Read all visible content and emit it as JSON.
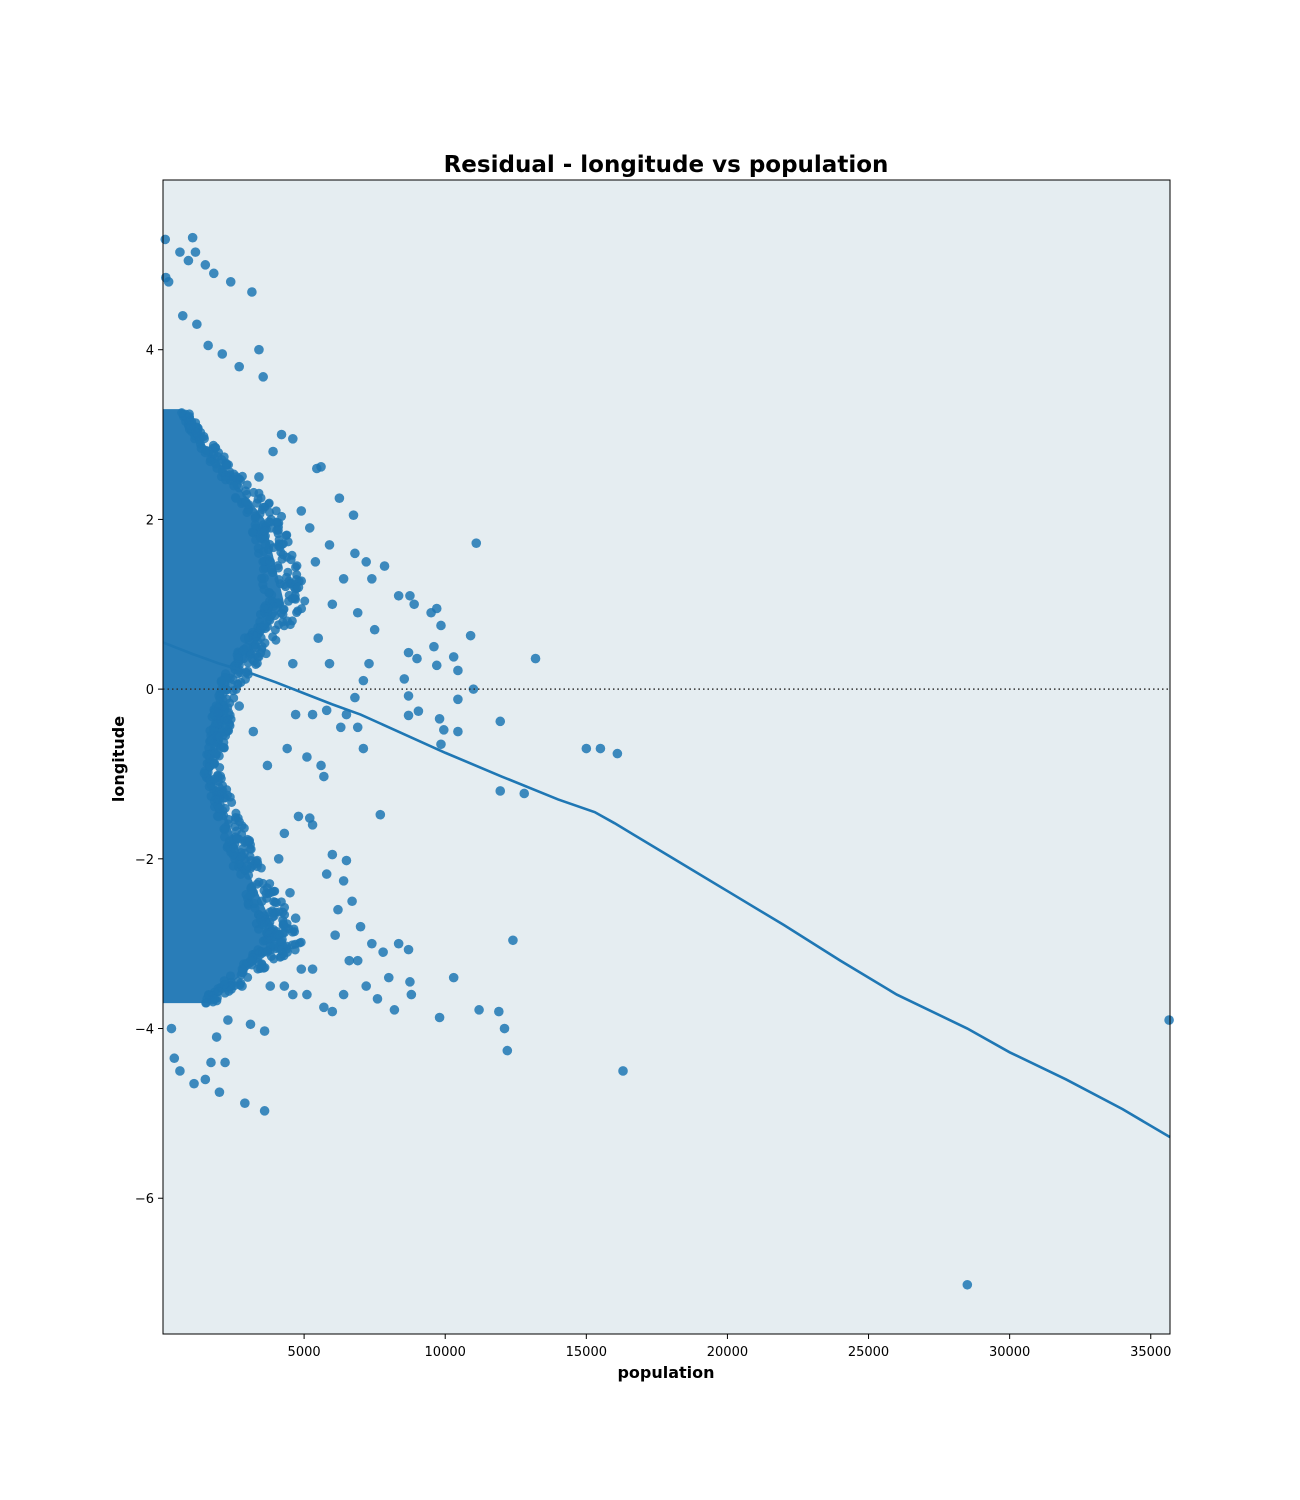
{
  "chart_data": {
    "type": "scatter",
    "title": "Residual - longitude vs population",
    "xlabel": "population",
    "ylabel": "longitude",
    "xlim": [
      0,
      35682
    ],
    "ylim": [
      -7.6,
      6.0
    ],
    "x_ticks": [
      5000,
      10000,
      15000,
      20000,
      25000,
      30000,
      35000
    ],
    "y_ticks": [
      -6,
      -4,
      -2,
      0,
      2,
      4
    ],
    "x_tick_labels": [
      "5000",
      "10000",
      "15000",
      "20000",
      "25000",
      "30000",
      "35000"
    ],
    "y_tick_labels": [
      "−6",
      "−4",
      "−2",
      "0",
      "2",
      "4"
    ],
    "colors": {
      "points": "#1f77b4",
      "fit_line": "#1f77b4",
      "plot_bg": "#e5edf1",
      "zero_line": "#333333"
    },
    "grid": false,
    "reference_line": {
      "y": 0,
      "style": "dotted"
    },
    "series": [
      {
        "kind": "points",
        "points": [
          [
            11100,
            1.72
          ],
          [
            13200,
            0.36
          ],
          [
            10900,
            0.63
          ],
          [
            11000,
            0.0
          ],
          [
            11950,
            -0.38
          ],
          [
            11950,
            -1.2
          ],
          [
            12800,
            -1.23
          ],
          [
            15000,
            -0.7
          ],
          [
            15500,
            -0.7
          ],
          [
            16100,
            -0.76
          ],
          [
            12400,
            -2.96
          ],
          [
            10300,
            -3.4
          ],
          [
            9800,
            -3.87
          ],
          [
            11200,
            -3.78
          ],
          [
            11900,
            -3.8
          ],
          [
            12100,
            -4.0
          ],
          [
            12200,
            -4.26
          ],
          [
            16300,
            -4.5
          ],
          [
            28500,
            -7.02
          ],
          [
            35650,
            -3.9
          ],
          [
            10300,
            0.38
          ],
          [
            10450,
            0.22
          ],
          [
            10450,
            -0.12
          ],
          [
            10450,
            -0.5
          ],
          [
            9800,
            -0.35
          ],
          [
            9850,
            -0.65
          ],
          [
            9950,
            -0.48
          ],
          [
            9500,
            0.9
          ],
          [
            9700,
            0.95
          ],
          [
            9850,
            0.75
          ],
          [
            9600,
            0.5
          ],
          [
            9700,
            0.28
          ],
          [
            9000,
            0.36
          ],
          [
            9050,
            -0.26
          ],
          [
            8700,
            -0.31
          ],
          [
            8700,
            -0.08
          ],
          [
            8550,
            0.12
          ],
          [
            8700,
            0.43
          ],
          [
            8350,
            1.1
          ],
          [
            8750,
            1.1
          ],
          [
            8900,
            1.0
          ],
          [
            7850,
            1.45
          ],
          [
            7700,
            -1.48
          ],
          [
            8350,
            -3.0
          ],
          [
            8700,
            -3.07
          ],
          [
            8750,
            -3.45
          ],
          [
            8800,
            -3.6
          ],
          [
            8200,
            -3.78
          ],
          [
            6750,
            2.05
          ],
          [
            6250,
            2.25
          ],
          [
            5600,
            2.62
          ],
          [
            5450,
            2.6
          ],
          [
            3400,
            4.0
          ],
          [
            3550,
            3.68
          ],
          [
            3150,
            4.68
          ],
          [
            2400,
            4.8
          ],
          [
            1050,
            5.32
          ],
          [
            1150,
            5.15
          ],
          [
            80,
            5.3
          ],
          [
            3600,
            -4.97
          ],
          [
            2900,
            -4.88
          ],
          [
            3600,
            -4.03
          ],
          [
            3100,
            -3.95
          ],
          [
            6800,
            1.6
          ],
          [
            7200,
            1.5
          ],
          [
            7400,
            1.3
          ],
          [
            6900,
            0.9
          ],
          [
            7500,
            0.7
          ],
          [
            7300,
            0.3
          ],
          [
            7100,
            0.1
          ],
          [
            6800,
            -0.1
          ],
          [
            7100,
            -0.7
          ],
          [
            6900,
            -0.45
          ],
          [
            6500,
            -0.3
          ],
          [
            6300,
            -0.45
          ],
          [
            5800,
            -0.25
          ],
          [
            5600,
            -0.9
          ],
          [
            5700,
            -1.03
          ],
          [
            5200,
            -1.52
          ],
          [
            5300,
            -1.6
          ],
          [
            5100,
            -0.8
          ],
          [
            6000,
            -1.95
          ],
          [
            6500,
            -2.02
          ],
          [
            6400,
            -2.26
          ],
          [
            5800,
            -2.18
          ],
          [
            6200,
            -2.6
          ],
          [
            6700,
            -2.5
          ],
          [
            6100,
            -2.9
          ],
          [
            6600,
            -3.2
          ],
          [
            7000,
            -2.8
          ],
          [
            7400,
            -3.0
          ],
          [
            7800,
            -3.1
          ],
          [
            7200,
            -3.5
          ],
          [
            7600,
            -3.65
          ],
          [
            6400,
            -3.6
          ],
          [
            6000,
            -3.8
          ],
          [
            5700,
            -3.75
          ],
          [
            5100,
            -3.6
          ],
          [
            6900,
            -3.2
          ],
          [
            8000,
            -3.4
          ],
          [
            4600,
            0.3
          ],
          [
            4400,
            0.8
          ],
          [
            4800,
            1.2
          ],
          [
            5200,
            1.9
          ],
          [
            4900,
            2.1
          ],
          [
            5400,
            1.5
          ],
          [
            5900,
            1.7
          ],
          [
            6400,
            1.3
          ],
          [
            6000,
            1.0
          ],
          [
            5500,
            0.6
          ],
          [
            5900,
            0.3
          ],
          [
            5300,
            -0.3
          ],
          [
            4700,
            -0.3
          ],
          [
            4400,
            -0.7
          ],
          [
            4800,
            -1.5
          ],
          [
            4300,
            -1.7
          ],
          [
            4100,
            -2.0
          ],
          [
            4500,
            -2.4
          ],
          [
            4700,
            -2.7
          ],
          [
            4400,
            -3.1
          ],
          [
            4900,
            -3.3
          ],
          [
            4300,
            -3.5
          ],
          [
            4600,
            -3.6
          ],
          [
            5300,
            -3.3
          ],
          [
            3500,
            0.5
          ],
          [
            3800,
            1.5
          ],
          [
            3400,
            2.5
          ],
          [
            3900,
            2.8
          ],
          [
            4200,
            3.0
          ],
          [
            4600,
            2.95
          ],
          [
            2700,
            3.8
          ],
          [
            2100,
            3.95
          ],
          [
            1600,
            4.05
          ],
          [
            1200,
            4.3
          ],
          [
            700,
            4.4
          ],
          [
            2600,
            2.5
          ],
          [
            3200,
            -0.5
          ],
          [
            3700,
            -0.9
          ],
          [
            3000,
            -1.8
          ],
          [
            3500,
            -2.5
          ],
          [
            3800,
            -3.5
          ],
          [
            2800,
            -3.5
          ],
          [
            2300,
            -3.9
          ],
          [
            1900,
            -4.1
          ],
          [
            1700,
            -4.4
          ],
          [
            2200,
            -4.4
          ],
          [
            2000,
            -4.75
          ],
          [
            1500,
            -4.6
          ],
          [
            1100,
            -4.65
          ],
          [
            600,
            -4.5
          ],
          [
            400,
            -4.35
          ],
          [
            300,
            -4.0
          ],
          [
            600,
            5.15
          ],
          [
            900,
            5.05
          ],
          [
            1500,
            5.0
          ],
          [
            1800,
            4.9
          ],
          [
            200,
            4.8
          ],
          [
            100,
            4.85
          ],
          [
            2700,
            -0.2
          ],
          [
            2900,
            0.6
          ]
        ]
      },
      {
        "kind": "dense_band",
        "segments": [
          {
            "y_from": -3.7,
            "y_to": 3.3,
            "x_to_at": [
              [
                -3.7,
                1500
              ],
              [
                -3.0,
                4200
              ],
              [
                -2.0,
                2800
              ],
              [
                -1.0,
                1700
              ],
              [
                0.0,
                2200
              ],
              [
                1.0,
                4300
              ],
              [
                2.0,
                3600
              ],
              [
                3.0,
                1200
              ],
              [
                3.3,
                700
              ]
            ]
          }
        ]
      },
      {
        "kind": "fit_line",
        "points": [
          [
            0,
            0.55
          ],
          [
            1000,
            0.42
          ],
          [
            2000,
            0.3
          ],
          [
            3000,
            0.2
          ],
          [
            4000,
            0.08
          ],
          [
            5000,
            -0.05
          ],
          [
            6000,
            -0.18
          ],
          [
            7000,
            -0.3
          ],
          [
            8000,
            -0.45
          ],
          [
            10000,
            -0.75
          ],
          [
            12000,
            -1.03
          ],
          [
            14000,
            -1.3
          ],
          [
            15300,
            -1.45
          ],
          [
            16000,
            -1.58
          ],
          [
            18000,
            -1.98
          ],
          [
            20000,
            -2.38
          ],
          [
            22000,
            -2.78
          ],
          [
            24000,
            -3.2
          ],
          [
            26000,
            -3.6
          ],
          [
            28500,
            -4.0
          ],
          [
            30000,
            -4.28
          ],
          [
            32000,
            -4.6
          ],
          [
            34000,
            -4.95
          ],
          [
            35682,
            -5.28
          ]
        ]
      }
    ]
  }
}
